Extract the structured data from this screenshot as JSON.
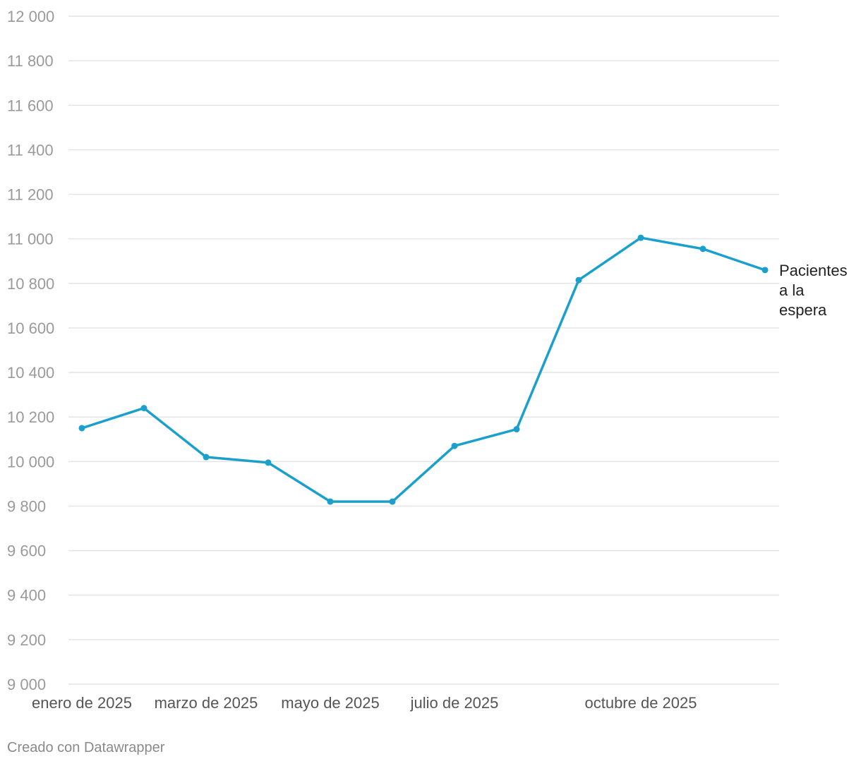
{
  "chart_data": {
    "type": "line",
    "title": "",
    "xlabel": "",
    "ylabel": "",
    "x": [
      "2025-01",
      "2025-02",
      "2025-03",
      "2025-04",
      "2025-05",
      "2025-06",
      "2025-07",
      "2025-08",
      "2025-09",
      "2025-10",
      "2025-11",
      "2025-12"
    ],
    "series": [
      {
        "name": "Pacientes a la espera",
        "values": [
          10150,
          10240,
          10020,
          9995,
          9820,
          9820,
          10070,
          10145,
          10815,
          11005,
          10955,
          10860
        ],
        "color": "#1ba0cd"
      }
    ],
    "xticks": [
      {
        "x": "2025-01",
        "label": "enero de 2025"
      },
      {
        "x": "2025-03",
        "label": "marzo de 2025"
      },
      {
        "x": "2025-05",
        "label": "mayo de 2025"
      },
      {
        "x": "2025-07",
        "label": "julio de 2025"
      },
      {
        "x": "2025-10",
        "label": "octubre de 2025"
      }
    ],
    "yticks": [
      {
        "value": 9000,
        "label": "9 000"
      },
      {
        "value": 9200,
        "label": "9 200"
      },
      {
        "value": 9400,
        "label": "9 400"
      },
      {
        "value": 9600,
        "label": "9 600"
      },
      {
        "value": 9800,
        "label": "9 800"
      },
      {
        "value": 10000,
        "label": "10 000"
      },
      {
        "value": 10200,
        "label": "10 200"
      },
      {
        "value": 10400,
        "label": "10 400"
      },
      {
        "value": 10600,
        "label": "10 600"
      },
      {
        "value": 10800,
        "label": "10 800"
      },
      {
        "value": 11000,
        "label": "11 000"
      },
      {
        "value": 11200,
        "label": "11 200"
      },
      {
        "value": 11400,
        "label": "11 400"
      },
      {
        "value": 11600,
        "label": "11 600"
      },
      {
        "value": 11800,
        "label": "11 800"
      },
      {
        "value": 12000,
        "label": "12 000"
      }
    ],
    "ylim": [
      9000,
      12000
    ],
    "grid": true,
    "series_label_lines": [
      "Pacientes",
      "a la",
      "espera"
    ],
    "legend": "inline-end-label"
  },
  "credit": "Creado con Datawrapper"
}
